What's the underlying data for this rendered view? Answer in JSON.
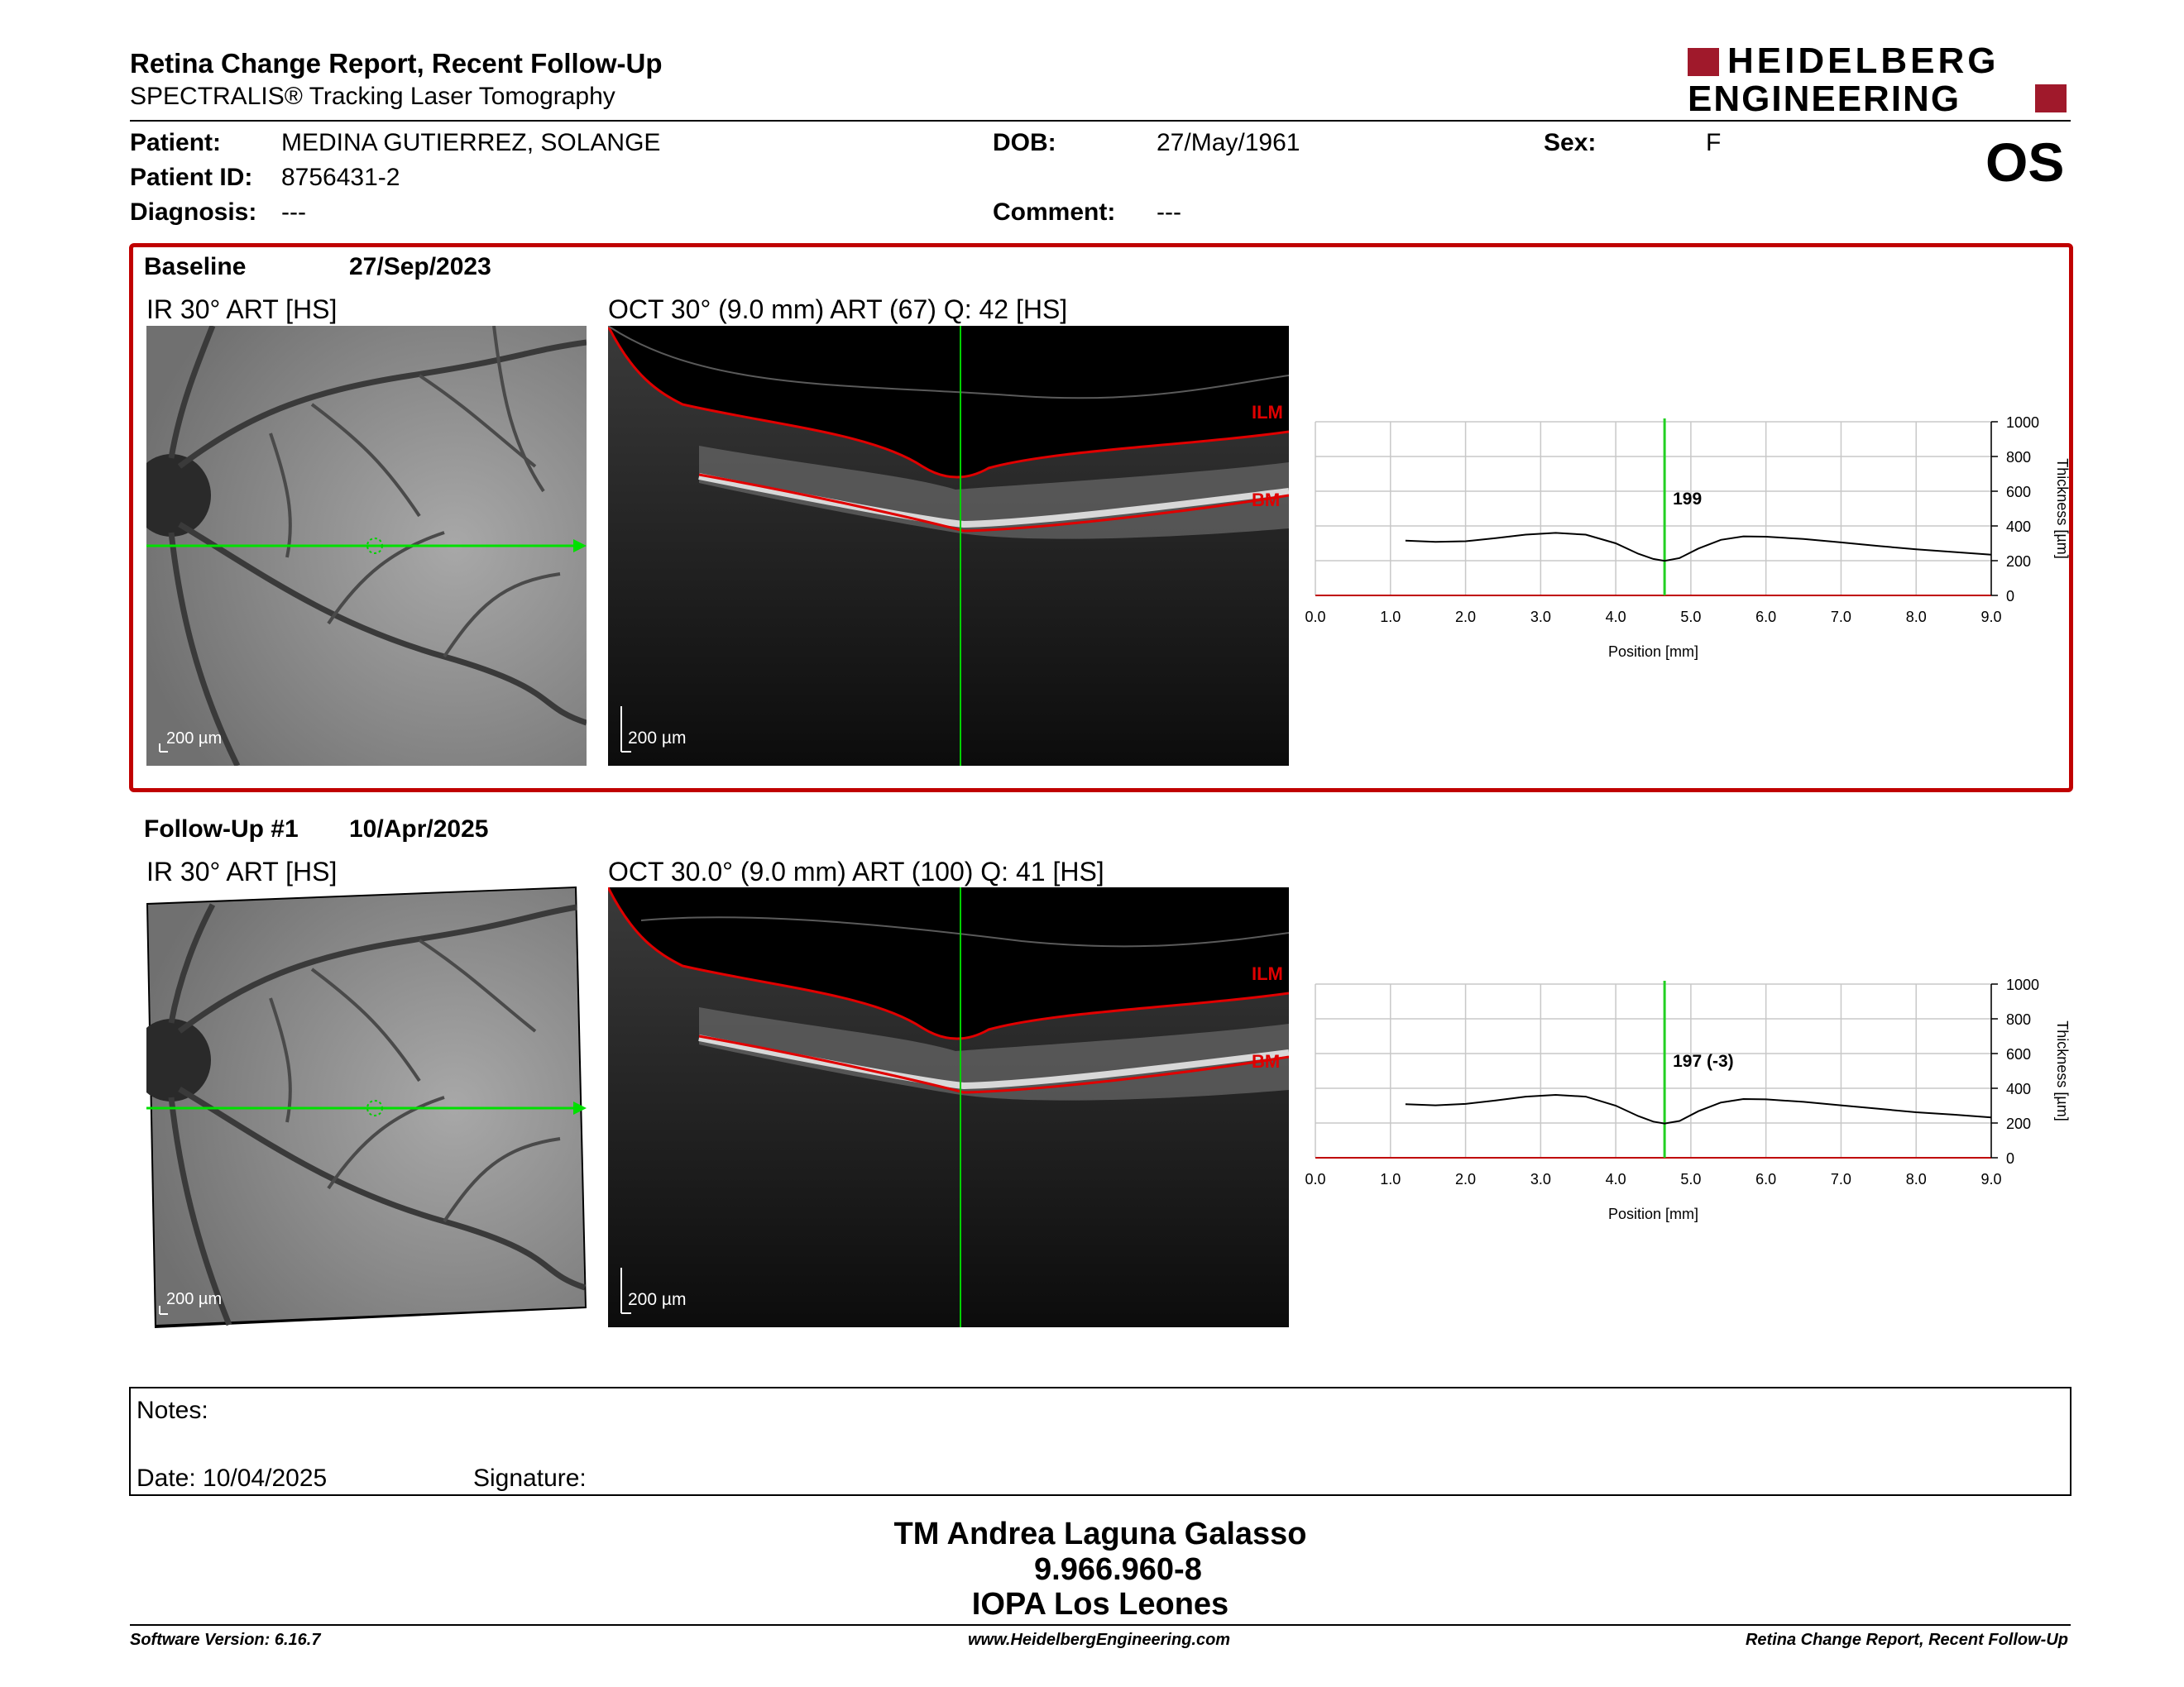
{
  "header": {
    "title": "Retina Change Report, Recent Follow-Up",
    "subtitle": "SPECTRALIS® Tracking Laser Tomography",
    "logo_line1": "HEIDELBERG",
    "logo_line2": "ENGINEERING",
    "eye": "OS"
  },
  "patient": {
    "name_label": "Patient:",
    "name": "MEDINA GUTIERREZ, SOLANGE",
    "id_label": "Patient ID:",
    "id": "8756431-2",
    "diagnosis_label": "Diagnosis:",
    "diagnosis": "---",
    "dob_label": "DOB:",
    "dob": "27/May/1961",
    "comment_label": "Comment:",
    "comment": "---",
    "sex_label": "Sex:",
    "sex": "F"
  },
  "baseline": {
    "label": "Baseline",
    "date": "27/Sep/2023",
    "ir_title": "IR 30° ART [HS]",
    "oct_title": "OCT 30° (9.0 mm) ART (67) Q: 42 [HS]",
    "ir_scale": "200 µm",
    "oct_scale": "200 µm",
    "ilm": "ILM",
    "bm": "BM"
  },
  "followup": {
    "label": "Follow-Up #1",
    "date": "10/Apr/2025",
    "ir_title": "IR 30° ART [HS]",
    "oct_title": "OCT 30.0° (9.0 mm) ART (100) Q: 41 [HS]",
    "ir_scale": "200 µm",
    "oct_scale": "200 µm",
    "ilm": "ILM",
    "bm": "BM"
  },
  "chart_data": [
    {
      "type": "line",
      "xlabel": "Position [mm]",
      "ylabel": "Thickness [µm]",
      "xlim": [
        0,
        9
      ],
      "ylim": [
        0,
        1000
      ],
      "xticks": [
        "0.0",
        "1.0",
        "2.0",
        "3.0",
        "4.0",
        "5.0",
        "6.0",
        "7.0",
        "8.0",
        "9.0"
      ],
      "yticks": [
        "0",
        "200",
        "400",
        "600",
        "800",
        "1000"
      ],
      "grid": true,
      "cursor_x": 4.65,
      "cursor_label": "199",
      "series": [
        {
          "x": [
            1.2,
            1.6,
            2.0,
            2.4,
            2.8,
            3.2,
            3.6,
            4.0,
            4.3,
            4.5,
            4.65,
            4.85,
            5.1,
            5.4,
            5.7,
            6.0,
            6.5,
            7.0,
            7.5,
            8.0,
            8.5,
            9.0
          ],
          "y": [
            315,
            308,
            312,
            330,
            350,
            360,
            350,
            300,
            240,
            210,
            199,
            215,
            270,
            320,
            340,
            338,
            325,
            305,
            285,
            265,
            250,
            235
          ]
        }
      ]
    },
    {
      "type": "line",
      "xlabel": "Position [mm]",
      "ylabel": "Thickness [µm]",
      "xlim": [
        0,
        9
      ],
      "ylim": [
        0,
        1000
      ],
      "xticks": [
        "0.0",
        "1.0",
        "2.0",
        "3.0",
        "4.0",
        "5.0",
        "6.0",
        "7.0",
        "8.0",
        "9.0"
      ],
      "yticks": [
        "0",
        "200",
        "400",
        "600",
        "800",
        "1000"
      ],
      "grid": true,
      "cursor_x": 4.65,
      "cursor_label": "197 (-3)",
      "series": [
        {
          "x": [
            1.2,
            1.6,
            2.0,
            2.4,
            2.8,
            3.2,
            3.6,
            4.0,
            4.3,
            4.5,
            4.65,
            4.85,
            5.1,
            5.4,
            5.7,
            6.0,
            6.5,
            7.0,
            7.5,
            8.0,
            8.5,
            9.0
          ],
          "y": [
            308,
            302,
            310,
            330,
            352,
            362,
            352,
            300,
            240,
            208,
            197,
            212,
            268,
            318,
            338,
            336,
            322,
            302,
            282,
            262,
            248,
            232
          ]
        }
      ]
    }
  ],
  "notes": {
    "label": "Notes:",
    "date_label": "Date: 10/04/2025",
    "signature_label": "Signature:"
  },
  "signatory": {
    "name": "TM Andrea Laguna Galasso",
    "id": "9.966.960-8",
    "institution": "IOPA Los Leones"
  },
  "footer": {
    "version": "Software Version: 6.16.7",
    "website": "www.HeidelbergEngineering.com",
    "report": "Retina Change Report, Recent Follow-Up"
  }
}
